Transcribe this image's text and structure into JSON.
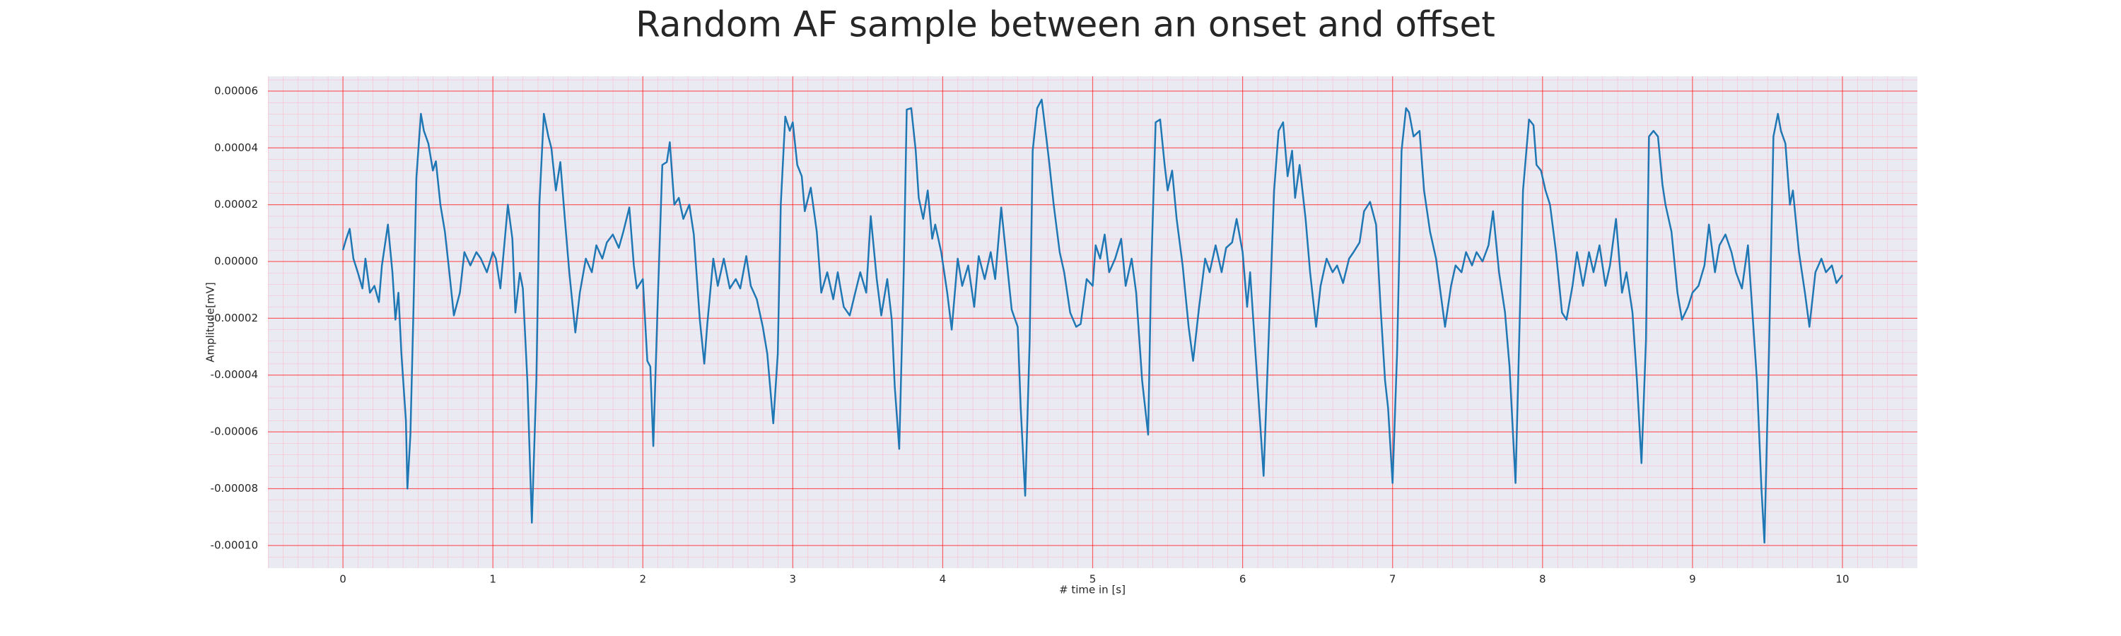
{
  "chart_data": {
    "type": "line",
    "title": "Random AF sample between an onset and offset",
    "x_label": "# time in [s]",
    "y_label": "Amplitude[mV]",
    "color": "#1f77b4",
    "grid": true,
    "grid_color": "#ff0000",
    "background": "#eaeaf2",
    "xlim": [
      -0.5,
      10.5
    ],
    "ylim": [
      -0.000108,
      6.52e-05
    ],
    "xticks": [
      0,
      1,
      2,
      3,
      4,
      5,
      6,
      7,
      8,
      9,
      10
    ],
    "yticks": [
      6e-05,
      4e-05,
      2e-05,
      {
        "value": 0,
        "label": "0.00000"
      },
      -2e-05,
      -4e-05,
      -6e-05,
      -8e-05,
      {
        "value": -0.0001,
        "label": "-0.00010"
      }
    ],
    "x": [
      0.0,
      0.02,
      0.045,
      0.07,
      0.1,
      0.13,
      0.15,
      0.18,
      0.21,
      0.24,
      0.26,
      0.3,
      0.33,
      0.35,
      0.37,
      0.39,
      0.42,
      0.43,
      0.45,
      0.47,
      0.49,
      0.52,
      0.54,
      0.57,
      0.6,
      0.62,
      0.65,
      0.68,
      0.71,
      0.74,
      0.78,
      0.81,
      0.85,
      0.89,
      0.92,
      0.96,
      1.0,
      1.02,
      1.05,
      1.08,
      1.1,
      1.13,
      1.15,
      1.18,
      1.2,
      1.23,
      1.26,
      1.29,
      1.31,
      1.34,
      1.37,
      1.39,
      1.42,
      1.45,
      1.48,
      1.51,
      1.55,
      1.58,
      1.62,
      1.66,
      1.69,
      1.73,
      1.76,
      1.8,
      1.84,
      1.87,
      1.91,
      1.94,
      1.96,
      2.0,
      2.03,
      2.05,
      2.07,
      2.1,
      2.13,
      2.16,
      2.18,
      2.21,
      2.24,
      2.27,
      2.31,
      2.34,
      2.38,
      2.41,
      2.43,
      2.47,
      2.5,
      2.54,
      2.58,
      2.62,
      2.65,
      2.69,
      2.72,
      2.76,
      2.8,
      2.83,
      2.87,
      2.9,
      2.92,
      2.95,
      2.98,
      3.0,
      3.03,
      3.06,
      3.08,
      3.12,
      3.16,
      3.19,
      3.23,
      3.27,
      3.3,
      3.34,
      3.38,
      3.41,
      3.45,
      3.49,
      3.52,
      3.56,
      3.59,
      3.63,
      3.66,
      3.68,
      3.71,
      3.74,
      3.76,
      3.79,
      3.82,
      3.84,
      3.87,
      3.9,
      3.93,
      3.95,
      3.99,
      4.03,
      4.06,
      4.1,
      4.13,
      4.17,
      4.21,
      4.24,
      4.28,
      4.32,
      4.35,
      4.39,
      4.43,
      4.46,
      4.5,
      4.52,
      4.55,
      4.58,
      4.6,
      4.63,
      4.66,
      4.69,
      4.71,
      4.74,
      4.78,
      4.81,
      4.85,
      4.89,
      4.92,
      4.96,
      5.0,
      5.02,
      5.05,
      5.08,
      5.11,
      5.15,
      5.19,
      5.22,
      5.26,
      5.29,
      5.33,
      5.37,
      5.39,
      5.42,
      5.45,
      5.48,
      5.5,
      5.53,
      5.56,
      5.6,
      5.64,
      5.67,
      5.71,
      5.75,
      5.78,
      5.82,
      5.86,
      5.89,
      5.93,
      5.96,
      6.0,
      6.03,
      6.05,
      6.08,
      6.11,
      6.14,
      6.17,
      6.21,
      6.24,
      6.27,
      6.3,
      6.33,
      6.35,
      6.38,
      6.42,
      6.45,
      6.49,
      6.52,
      6.56,
      6.6,
      6.63,
      6.67,
      6.71,
      6.74,
      6.78,
      6.81,
      6.85,
      6.89,
      6.92,
      6.95,
      6.97,
      7.0,
      7.03,
      7.06,
      7.09,
      7.11,
      7.14,
      7.18,
      7.21,
      7.25,
      7.29,
      7.32,
      7.35,
      7.39,
      7.42,
      7.46,
      7.49,
      7.53,
      7.56,
      7.6,
      7.64,
      7.67,
      7.71,
      7.75,
      7.78,
      7.82,
      7.84,
      7.87,
      7.91,
      7.94,
      7.96,
      7.99,
      8.02,
      8.05,
      8.09,
      8.13,
      8.16,
      8.2,
      8.23,
      8.27,
      8.31,
      8.34,
      8.38,
      8.42,
      8.45,
      8.49,
      8.53,
      8.56,
      8.6,
      8.63,
      8.66,
      8.69,
      8.71,
      8.74,
      8.77,
      8.8,
      8.82,
      8.86,
      8.9,
      8.93,
      8.97,
      9.0,
      9.04,
      9.08,
      9.11,
      9.15,
      9.18,
      9.22,
      9.26,
      9.29,
      9.33,
      9.37,
      9.4,
      9.43,
      9.46,
      9.48,
      9.51,
      9.54,
      9.57,
      9.59,
      9.62,
      9.65,
      9.67,
      9.71,
      9.75,
      9.78,
      9.82,
      9.86,
      9.89,
      9.93,
      9.96,
      10.0
    ],
    "values": [
      4e-06,
      7.6e-06,
      1.15e-05,
      1e-06,
      -4e-06,
      -9.5e-06,
      1e-06,
      -1.1e-05,
      -8.6e-06,
      -1.43e-05,
      -1.4e-06,
      1.3e-05,
      -3.8e-06,
      -2.05e-05,
      -1.1e-05,
      -3.25e-05,
      -5.6e-05,
      -8e-05,
      -6.1e-05,
      -1.8e-05,
      2.96e-05,
      5.2e-05,
      4.6e-05,
      4.15e-05,
      3.2e-05,
      3.53e-05,
      2e-05,
      1.05e-05,
      -4e-06,
      -1.9e-05,
      -1.1e-05,
      3.3e-06,
      -1.4e-06,
      3.3e-06,
      1e-06,
      -3.8e-06,
      3.3e-06,
      1e-06,
      -9.5e-06,
      8e-06,
      2e-05,
      8e-06,
      -1.8e-05,
      -4e-06,
      -9.5e-06,
      -4.2e-05,
      -9.2e-05,
      -4.2e-05,
      2e-05,
      5.2e-05,
      4.4e-05,
      4e-05,
      2.5e-05,
      3.5e-05,
      1.5e-05,
      -4e-06,
      -2.5e-05,
      -1.1e-05,
      1e-06,
      -3.8e-06,
      5.7e-06,
      1e-06,
      6.7e-06,
      9.5e-06,
      4.8e-06,
      1.05e-05,
      1.9e-05,
      -1.4e-06,
      -9.5e-06,
      -6.2e-06,
      -3.5e-05,
      -3.7e-05,
      -6.5e-05,
      -1.33e-05,
      3.4e-05,
      3.5e-05,
      4.2e-05,
      2e-05,
      2.24e-05,
      1.5e-05,
      2e-05,
      9.5e-06,
      -2.05e-05,
      -3.6e-05,
      -2.2e-05,
      1e-06,
      -8.6e-06,
      1e-06,
      -9.5e-06,
      -6.2e-06,
      -9.5e-06,
      1.9e-06,
      -8.6e-06,
      -1.33e-05,
      -2.3e-05,
      -3.25e-05,
      -5.7e-05,
      -3.25e-05,
      2e-05,
      5.1e-05,
      4.6e-05,
      4.9e-05,
      3.4e-05,
      3e-05,
      1.77e-05,
      2.6e-05,
      1.05e-05,
      -1.1e-05,
      -3.8e-06,
      -1.33e-05,
      -3.8e-06,
      -1.6e-05,
      -1.9e-05,
      -1.24e-05,
      -3.8e-06,
      -1.1e-05,
      1.6e-05,
      -6.2e-06,
      -1.9e-05,
      -6.2e-06,
      -2.05e-05,
      -4.4e-05,
      -6.6e-05,
      -3.8e-06,
      5.35e-05,
      5.4e-05,
      3.9e-05,
      2.24e-05,
      1.5e-05,
      2.5e-05,
      8e-06,
      1.3e-05,
      3.3e-06,
      -1.1e-05,
      -2.4e-05,
      1e-06,
      -8.6e-06,
      -1.4e-06,
      -1.6e-05,
      1.9e-06,
      -6.2e-06,
      3.3e-06,
      -6.2e-06,
      1.9e-05,
      -1.4e-06,
      -1.7e-05,
      -2.3e-05,
      -5.15e-05,
      -8.25e-05,
      -2.77e-05,
      3.9e-05,
      5.4e-05,
      5.7e-05,
      4.4e-05,
      3.5e-05,
      2e-05,
      3.3e-06,
      -3.8e-06,
      -1.8e-05,
      -2.3e-05,
      -2.2e-05,
      -6.2e-06,
      -8.6e-06,
      5.7e-06,
      1e-06,
      9.5e-06,
      -3.8e-06,
      1e-06,
      8e-06,
      -8.6e-06,
      1e-06,
      -1.1e-05,
      -4.2e-05,
      -6.1e-05,
      -3.8e-06,
      4.9e-05,
      5e-05,
      3.4e-05,
      2.5e-05,
      3.2e-05,
      1.5e-05,
      -1.4e-06,
      -2.3e-05,
      -3.5e-05,
      -1.6e-05,
      1e-06,
      -3.8e-06,
      5.7e-06,
      -3.8e-06,
      4.8e-06,
      6.7e-06,
      1.5e-05,
      3.3e-06,
      -1.6e-05,
      -3.8e-06,
      -2.77e-05,
      -5.15e-05,
      -7.55e-05,
      -3.25e-05,
      2.5e-05,
      4.6e-05,
      4.9e-05,
      3e-05,
      3.9e-05,
      2.24e-05,
      3.4e-05,
      1.5e-05,
      -3.8e-06,
      -2.3e-05,
      -8.6e-06,
      1e-06,
      -3.8e-06,
      -1.4e-06,
      -7.6e-06,
      1e-06,
      3.3e-06,
      6.7e-06,
      1.77e-05,
      2.1e-05,
      1.3e-05,
      -1.6e-05,
      -4.2e-05,
      -5.15e-05,
      -7.8e-05,
      -3.25e-05,
      3.9e-05,
      5.4e-05,
      5.25e-05,
      4.4e-05,
      4.6e-05,
      2.5e-05,
      1.05e-05,
      1e-06,
      -1.1e-05,
      -2.3e-05,
      -8.6e-06,
      -1.4e-06,
      -3.8e-06,
      3.3e-06,
      -1.4e-06,
      3.3e-06,
      0.0,
      5.7e-06,
      1.77e-05,
      -3.8e-06,
      -1.8e-05,
      -3.7e-05,
      -7.8e-05,
      -3.7e-05,
      2.5e-05,
      5e-05,
      4.8e-05,
      3.4e-05,
      3.2e-05,
      2.5e-05,
      2e-05,
      3.3e-06,
      -1.8e-05,
      -2.05e-05,
      -8.6e-06,
      3.3e-06,
      -8.6e-06,
      3.3e-06,
      -3.8e-06,
      5.7e-06,
      -8.6e-06,
      -1.4e-06,
      1.5e-05,
      -1.1e-05,
      -3.8e-06,
      -1.8e-05,
      -4.2e-05,
      -7.1e-05,
      -2.77e-05,
      4.4e-05,
      4.6e-05,
      4.4e-05,
      2.7e-05,
      2e-05,
      1.05e-05,
      -1.1e-05,
      -2.05e-05,
      -1.6e-05,
      -1.1e-05,
      -8.6e-06,
      -1.4e-06,
      1.3e-05,
      -3.8e-06,
      5.7e-06,
      9.5e-06,
      3.3e-06,
      -3.8e-06,
      -9.5e-06,
      5.7e-06,
      -1.8e-05,
      -4.2e-05,
      -8e-05,
      -9.9e-05,
      -3.25e-05,
      4.4e-05,
      5.2e-05,
      4.6e-05,
      4.15e-05,
      2e-05,
      2.5e-05,
      3.3e-06,
      -1.1e-05,
      -2.3e-05,
      -3.8e-06,
      1e-06,
      -3.8e-06,
      -1.4e-06,
      -7.6e-06,
      -4.8e-06
    ]
  }
}
